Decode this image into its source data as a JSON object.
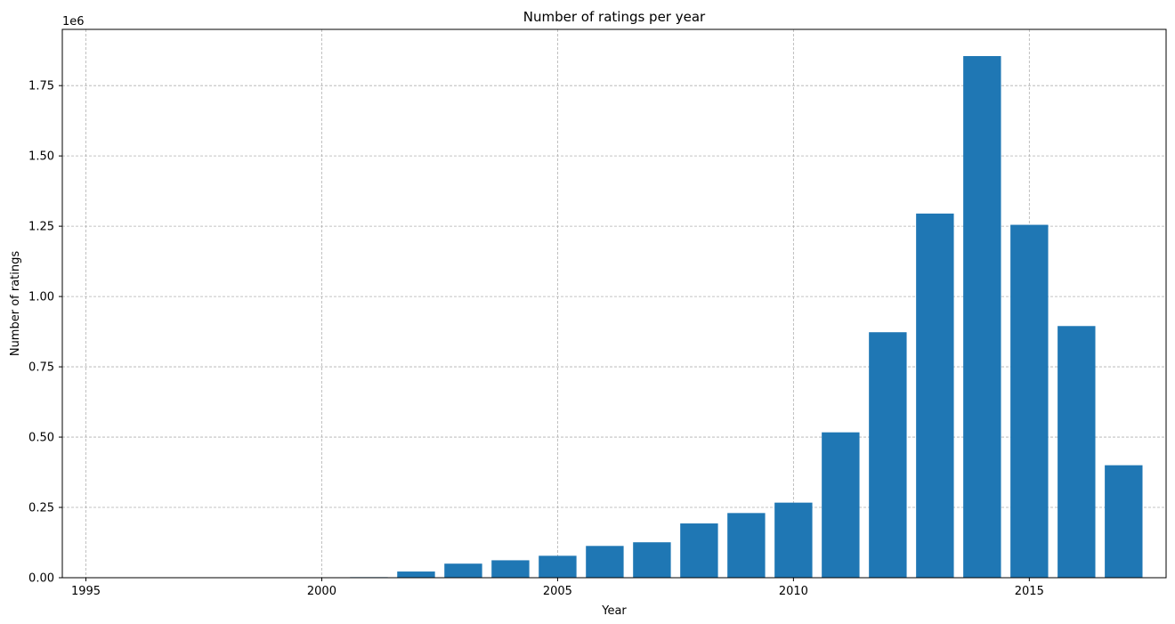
{
  "chart_data": {
    "type": "bar",
    "title": "Number of ratings per year",
    "xlabel": "Year",
    "ylabel": "Number of ratings",
    "y_offset_label": "1e6",
    "x": [
      1995,
      1996,
      1997,
      1998,
      1999,
      2000,
      2001,
      2002,
      2003,
      2004,
      2005,
      2006,
      2007,
      2008,
      2009,
      2010,
      2011,
      2012,
      2013,
      2014,
      2015,
      2016,
      2017
    ],
    "values": [
      0,
      0,
      0,
      0,
      0,
      0,
      2000,
      22000,
      50000,
      62000,
      78000,
      113000,
      126000,
      193000,
      230000,
      267000,
      517000,
      873000,
      1295000,
      1855000,
      1255000,
      895000,
      400000
    ],
    "xlim": [
      1994.5,
      2017.9
    ],
    "ylim": [
      0,
      1950000
    ],
    "x_ticks": [
      1995,
      2000,
      2005,
      2010,
      2015
    ],
    "x_tick_labels": [
      "1995",
      "2000",
      "2005",
      "2010",
      "2015"
    ],
    "y_ticks": [
      0,
      250000,
      500000,
      750000,
      1000000,
      1250000,
      1500000,
      1750000
    ],
    "y_tick_labels": [
      "0.00",
      "0.25",
      "0.50",
      "0.75",
      "1.00",
      "1.25",
      "1.50",
      "1.75"
    ],
    "grid": true,
    "bar_color": "#1f77b4",
    "grid_color": "#b0b0b0"
  }
}
